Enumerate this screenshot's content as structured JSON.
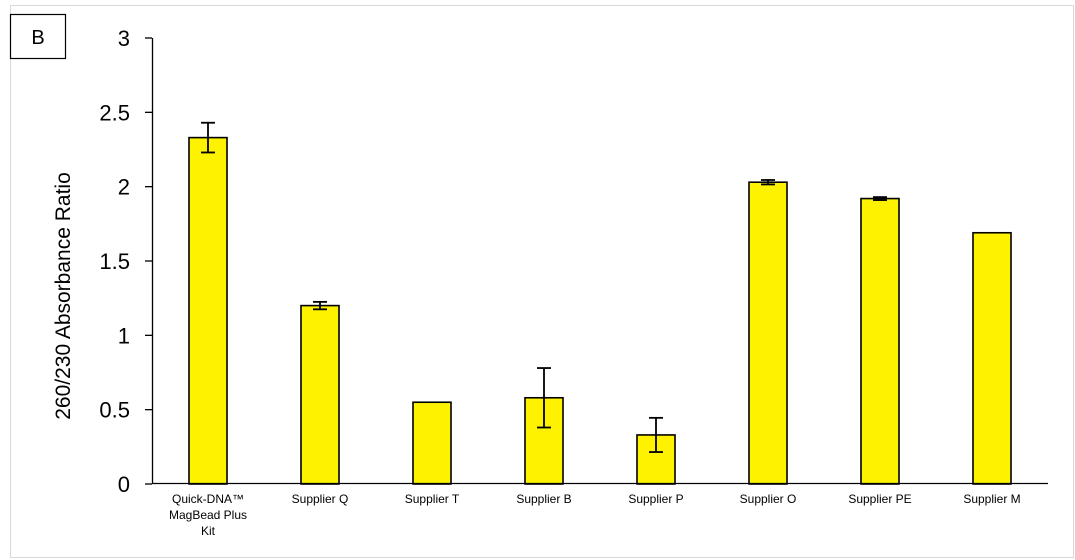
{
  "panel_label": "B",
  "chart_data": {
    "type": "bar",
    "title": "",
    "xlabel": "",
    "ylabel": "260/230 Absorbance Ratio",
    "ylim": [
      0,
      3
    ],
    "yticks": [
      "0",
      "0.5",
      "1",
      "1.5",
      "2",
      "2.5",
      "3"
    ],
    "categories": [
      [
        "Quick-DNA™",
        "MagBead Plus",
        "Kit"
      ],
      [
        "Supplier Q"
      ],
      [
        "Supplier T"
      ],
      [
        "Supplier B"
      ],
      [
        "Supplier P"
      ],
      [
        "Supplier O"
      ],
      [
        "Supplier PE"
      ],
      [
        "Supplier M"
      ]
    ],
    "values": [
      2.33,
      1.2,
      0.55,
      0.58,
      0.33,
      2.03,
      1.92,
      1.69
    ],
    "errors": [
      0.1,
      0.025,
      0,
      0.2,
      0.115,
      0.015,
      0.01,
      0
    ],
    "bar_color": "#FFF200",
    "bar_edge_color": "#000000",
    "grid": false,
    "legend": "none"
  }
}
